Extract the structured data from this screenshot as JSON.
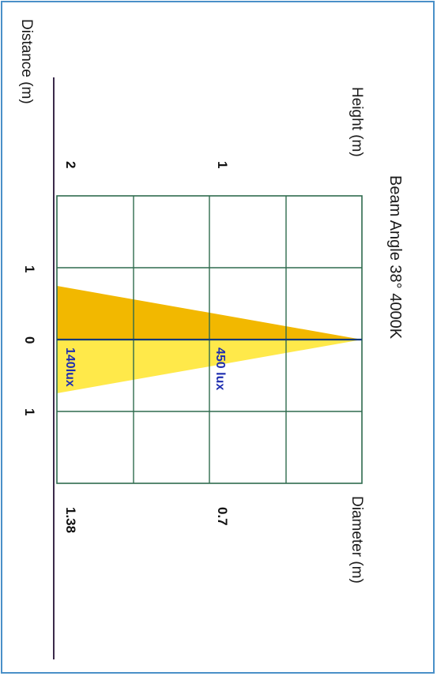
{
  "title": "Beam Angle 38°  4000K",
  "axis_height": "Height (m)",
  "axis_diameter": "Diameter (m)",
  "axis_distance": "Distance (m)",
  "height_ticks": [
    "1",
    "2"
  ],
  "distance_ticks": [
    "1",
    "0",
    "1"
  ],
  "diameter_values": [
    "0.7",
    "1.38"
  ],
  "lux_labels": [
    "450 lux",
    "140lux"
  ],
  "colors": {
    "beam": "#f2b800",
    "beam_light": "#ffe94a",
    "grid_dark": "#2f6b4e",
    "grid_light": "#5ab2a8",
    "center_line": "#123a7a",
    "frame": "#4a90c8",
    "axis_rule": "#3a2a4a"
  }
}
